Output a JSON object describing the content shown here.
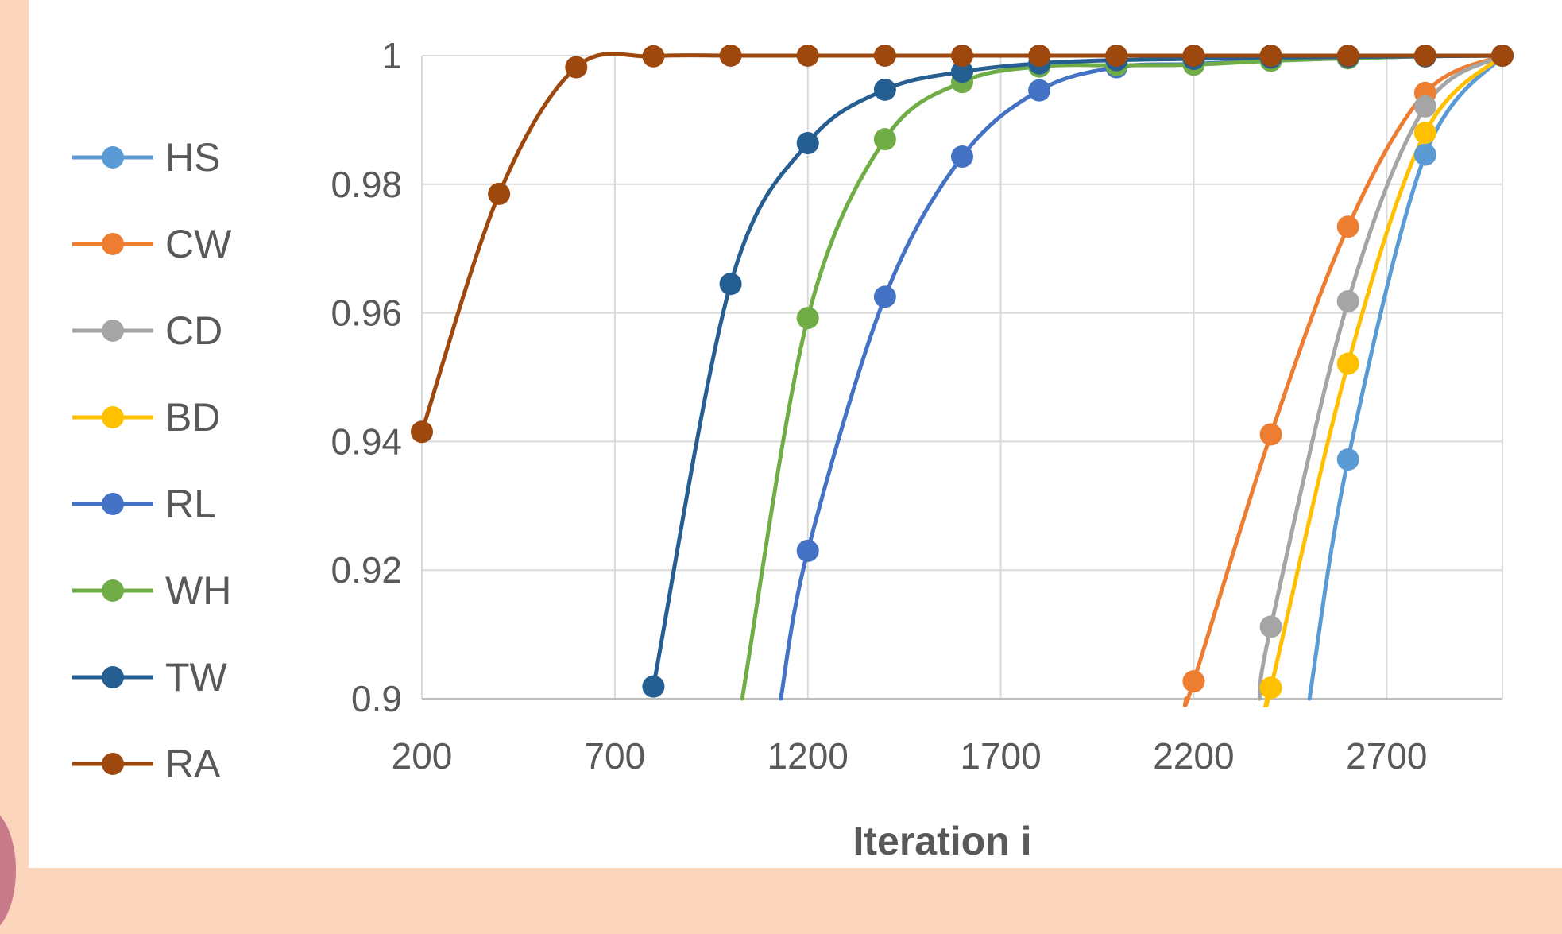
{
  "chart_data": {
    "type": "line",
    "xlabel": "Iteration i",
    "ylabel": "",
    "xlim": [
      200,
      3000
    ],
    "ylim": [
      0.9,
      1.0
    ],
    "x_ticks": [
      "200",
      "700",
      "1200",
      "1700",
      "2200",
      "2700"
    ],
    "y_ticks": [
      "0.9",
      "0.92",
      "0.94",
      "0.96",
      "0.98",
      "1"
    ],
    "grid": true,
    "legend_position": "left",
    "series": [
      {
        "name": "HS",
        "color": "#5b9bd5",
        "x": [
          2500,
          2600,
          2800,
          3000
        ],
        "y": [
          0.9,
          0.9372,
          0.9846,
          1.0
        ]
      },
      {
        "name": "CW",
        "color": "#ed7d31",
        "x": [
          2180,
          2200,
          2400,
          2600,
          2800,
          3000
        ],
        "y": [
          0.9,
          0.9027,
          0.9411,
          0.9734,
          0.9942,
          1.0
        ]
      },
      {
        "name": "CD",
        "color": "#a5a5a5",
        "x": [
          2370,
          2400,
          2600,
          2800,
          3000
        ],
        "y": [
          0.9,
          0.9112,
          0.9618,
          0.9921,
          1.0
        ]
      },
      {
        "name": "BD",
        "color": "#ffc000",
        "x": [
          2390,
          2400,
          2600,
          2800,
          3000
        ],
        "y": [
          0.9,
          0.9017,
          0.9521,
          0.988,
          1.0
        ]
      },
      {
        "name": "RL",
        "color": "#4472c4",
        "x": [
          1130,
          1200,
          1400,
          1600,
          1800,
          2000,
          2200,
          2400,
          2600,
          2800,
          3000
        ],
        "y": [
          0.9,
          0.923,
          0.9625,
          0.9843,
          0.9946,
          0.9982,
          0.9987,
          0.9993,
          0.9996,
          0.9999,
          1.0
        ]
      },
      {
        "name": "WH",
        "color": "#70ad47",
        "x": [
          1030,
          1200,
          1400,
          1600,
          1800,
          2000,
          2200,
          2400,
          2600,
          2800,
          3000
        ],
        "y": [
          0.9,
          0.9592,
          0.987,
          0.9959,
          0.9983,
          0.9985,
          0.9986,
          0.9992,
          0.9996,
          0.9999,
          1.0
        ]
      },
      {
        "name": "TW",
        "color": "#255e91",
        "x": [
          800,
          1000,
          1200,
          1400,
          1600,
          1800,
          2000,
          2200,
          2400,
          2600,
          2800,
          3000
        ],
        "y": [
          0.9019,
          0.9645,
          0.9864,
          0.9947,
          0.9975,
          0.9988,
          0.9993,
          0.9995,
          0.9997,
          0.9998,
          0.9999,
          1.0
        ]
      },
      {
        "name": "RA",
        "color": "#9e480e",
        "x": [
          200,
          400,
          600,
          800,
          1000,
          1200,
          1400,
          1600,
          1800,
          2000,
          2200,
          2400,
          2600,
          2800,
          3000
        ],
        "y": [
          0.9415,
          0.9785,
          0.9982,
          0.9999,
          1.0,
          1.0,
          1.0,
          1.0,
          1.0,
          1.0,
          1.0,
          1.0,
          1.0,
          1.0,
          1.0
        ]
      }
    ]
  }
}
